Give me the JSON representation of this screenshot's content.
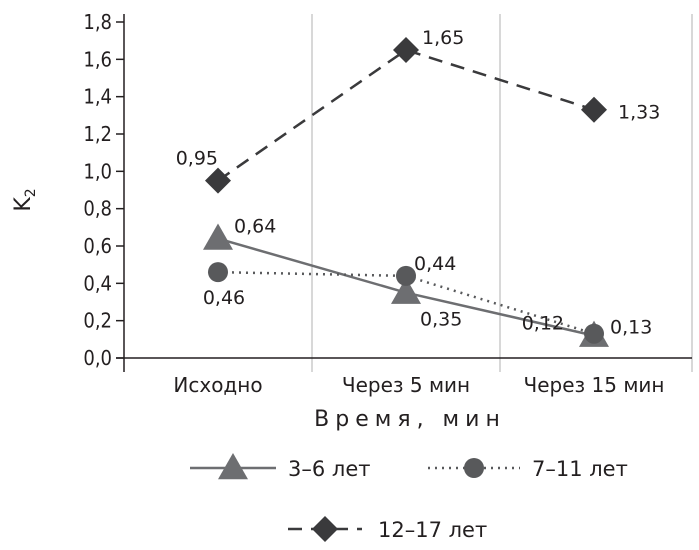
{
  "chart_data": {
    "type": "line",
    "categories": [
      "Исходно",
      "Через 5 мин",
      "Через 15 мин"
    ],
    "ylabel": "K",
    "ylabel_sub": "2",
    "xlabel": "Время, мин",
    "ylim": [
      0,
      1.8
    ],
    "yticks": [
      "0,0",
      "0,2",
      "0,4",
      "0,6",
      "0,8",
      "1,0",
      "1,2",
      "1,4",
      "1,6",
      "1,8"
    ],
    "grid": "vertical",
    "legend_position": "bottom",
    "series": [
      {
        "name": "3–6 лет",
        "marker": "triangle",
        "line": "solid",
        "color": "#6d6e71",
        "values": [
          0.64,
          0.35,
          0.12
        ],
        "labels": [
          "0,64",
          "0,35",
          "0,12"
        ]
      },
      {
        "name": "7–11 лет",
        "marker": "circle",
        "line": "dotted",
        "color": "#58595b",
        "values": [
          0.46,
          0.44,
          0.13
        ],
        "labels": [
          "0,46",
          "0,44",
          "0,13"
        ]
      },
      {
        "name": "12–17 лет",
        "marker": "diamond",
        "line": "dashed",
        "color": "#3a3a3c",
        "values": [
          0.95,
          1.65,
          1.33
        ],
        "labels": [
          "0,95",
          "1,65",
          "1,33"
        ]
      }
    ]
  }
}
